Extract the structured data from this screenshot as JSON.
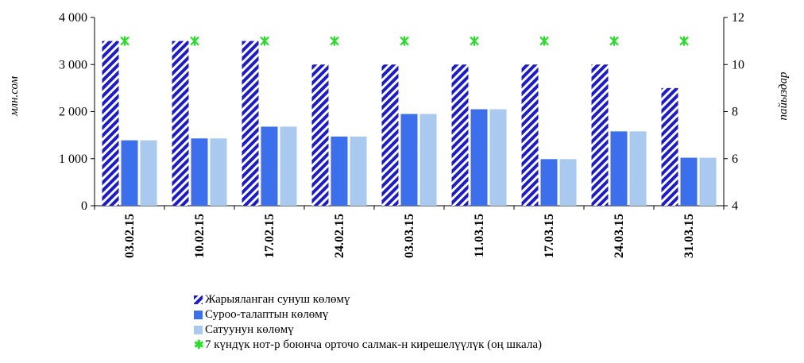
{
  "chart_data": {
    "type": "bar",
    "categories": [
      "03.02.15",
      "10.02.15",
      "17.02.15",
      "24.02.15",
      "03.03.15",
      "11.03.15",
      "17.03.15",
      "24.03.15",
      "31.03.15"
    ],
    "series": [
      {
        "name": "Жарыяланган сунуш көлөмү",
        "axis": "left",
        "pattern": "diagonal-stripes",
        "colors": [
          "#1a1ad6",
          "#ffffff"
        ],
        "values": [
          3500,
          3500,
          3500,
          3000,
          3000,
          3000,
          3000,
          3000,
          2500
        ]
      },
      {
        "name": "Суроо-талаптын көлөмү",
        "axis": "left",
        "color": "#3b6fec",
        "values": [
          1390,
          1430,
          1680,
          1470,
          1950,
          2050,
          990,
          1580,
          1020
        ]
      },
      {
        "name": "Сатуунун көлөмү",
        "axis": "left",
        "color": "#a9c9ef",
        "values": [
          1390,
          1430,
          1680,
          1470,
          1950,
          2050,
          990,
          1580,
          1020
        ]
      },
      {
        "name": "7 күндүк нот-р боюнча орточо салмак-н кирешелүүлүк (оң шкала)",
        "axis": "right",
        "type": "scatter",
        "marker": "star",
        "color": "#22e022",
        "values": [
          11,
          11,
          11,
          11,
          11,
          11,
          11,
          11,
          11
        ]
      }
    ],
    "ylabel": "млн.сом",
    "y2label": "пайыздар",
    "ylim": [
      0,
      4000
    ],
    "y2lim": [
      4,
      12
    ],
    "yticks": [
      0,
      1000,
      2000,
      3000,
      4000
    ],
    "yticklabels": [
      "0",
      "1 000",
      "2 000",
      "3 000",
      "4 000"
    ],
    "y2ticks": [
      4,
      6,
      8,
      10,
      12
    ],
    "y2ticklabels": [
      "4",
      "6",
      "8",
      "10",
      "12"
    ],
    "legend": "bottom",
    "grid": false
  }
}
